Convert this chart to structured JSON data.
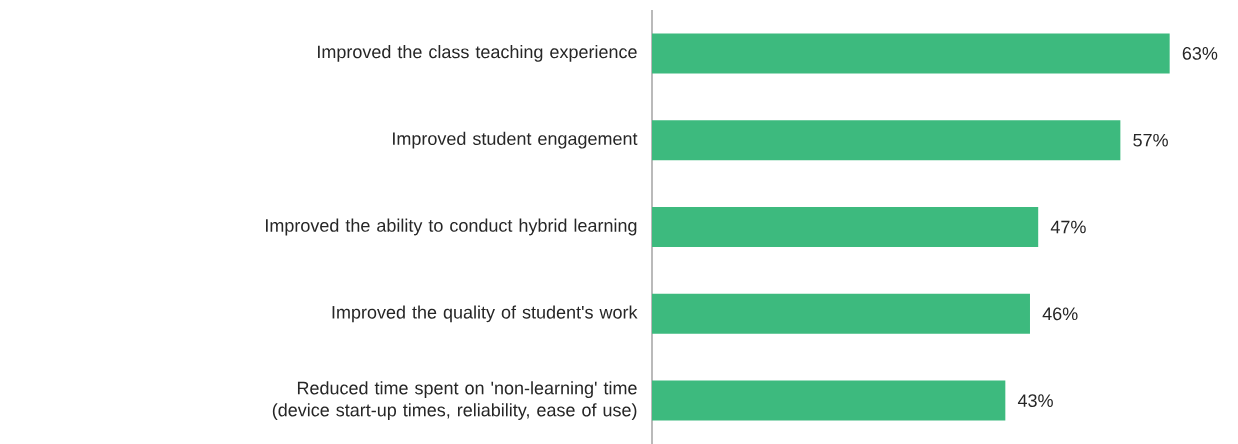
{
  "chart_data": {
    "type": "bar",
    "orientation": "horizontal",
    "categories": [
      "Improved the class teaching experience",
      "Improved student engagement",
      "Improved the ability to conduct hybrid learning",
      "Improved the quality of student's work",
      "Reduced time spent on 'non-learning' time (device start-up times, reliability, ease of use)"
    ],
    "values": [
      63,
      57,
      47,
      46,
      43
    ],
    "value_labels": [
      "63%",
      "57%",
      "47%",
      "46%",
      "43%"
    ],
    "color": "#3dba7e"
  }
}
